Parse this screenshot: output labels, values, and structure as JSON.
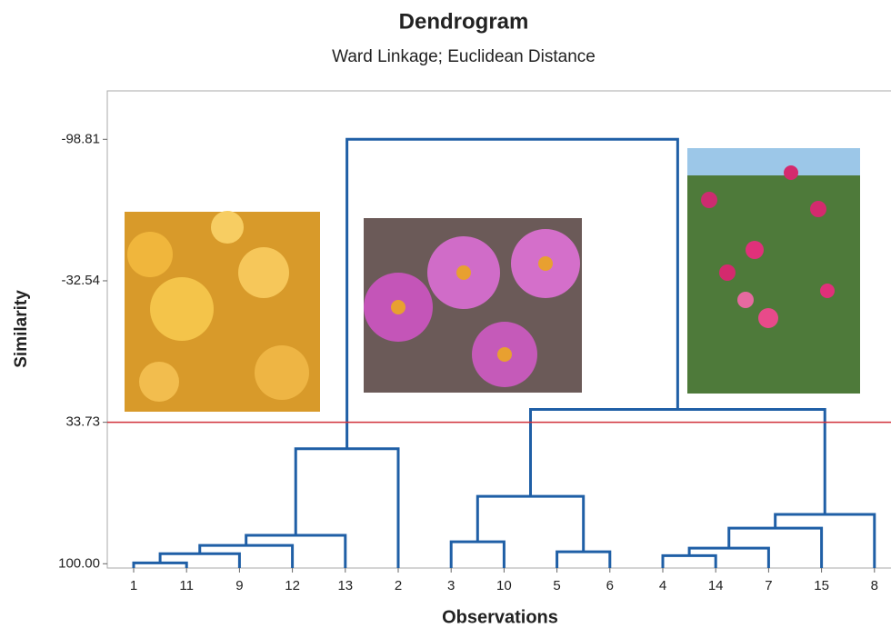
{
  "chart_data": {
    "type": "dendrogram",
    "title": "Dendrogram",
    "subtitle": "Ward Linkage; Euclidean Distance",
    "x_label": "Observations",
    "y_label": "Similarity",
    "categories": [
      "1",
      "11",
      "9",
      "12",
      "13",
      "2",
      "3",
      "10",
      "5",
      "6",
      "4",
      "14",
      "7",
      "15",
      "8"
    ],
    "merges": [
      {
        "a": 0,
        "b": 1,
        "value": 99.6
      },
      {
        "a": 15,
        "b": 2,
        "value": 95.3
      },
      {
        "a": 16,
        "b": 3,
        "value": 91.4
      },
      {
        "a": 17,
        "b": 4,
        "value": 86.7
      },
      {
        "a": 18,
        "b": 5,
        "value": 46.1
      },
      {
        "a": 6,
        "b": 7,
        "value": 89.7
      },
      {
        "a": 8,
        "b": 9,
        "value": 94.4
      },
      {
        "a": 20,
        "b": 21,
        "value": 68.4
      },
      {
        "a": 10,
        "b": 11,
        "value": 96.2
      },
      {
        "a": 23,
        "b": 12,
        "value": 92.7
      },
      {
        "a": 24,
        "b": 13,
        "value": 83.3
      },
      {
        "a": 25,
        "b": 14,
        "value": 76.9
      },
      {
        "a": 22,
        "b": 26,
        "value": 27.7
      },
      {
        "a": 19,
        "b": 27,
        "value": -98.81
      }
    ],
    "color": "#1f5fa6",
    "cut_line": 33.73,
    "cut_color": "#d0303a",
    "ylim": [
      102,
      -121.5
    ],
    "yticks": [
      -98.81,
      -32.54,
      33.73,
      {
        "value": 100,
        "label": "100.00"
      }
    ]
  }
}
